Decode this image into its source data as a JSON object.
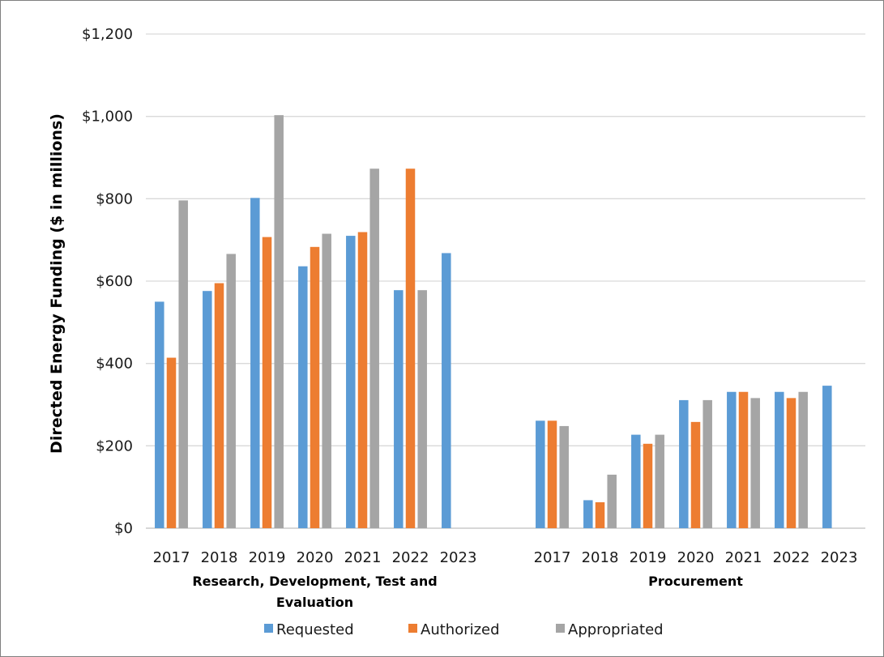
{
  "chart_data": {
    "type": "bar",
    "ylabel": "Directed Energy Funding ($ in millions)",
    "ylim": [
      0,
      1200
    ],
    "y_ticks": [
      "$0",
      "$200",
      "$400",
      "$600",
      "$800",
      "$1,000",
      "$1,200"
    ],
    "y_tick_values": [
      0,
      200,
      400,
      600,
      800,
      1000,
      1200
    ],
    "grid": true,
    "legend_position": "bottom",
    "legend": [
      "Requested",
      "Authorized",
      "Appropriated"
    ],
    "colors": {
      "Requested": "#5b9bd5",
      "Authorized": "#ed7d31",
      "Appropriated": "#a5a5a5"
    },
    "groups": [
      {
        "label_lines": [
          "Research, Development, Test and",
          "Evaluation"
        ],
        "categories": [
          "2017",
          "2018",
          "2019",
          "2020",
          "2021",
          "2022",
          "2023"
        ],
        "series": [
          {
            "name": "Requested",
            "values": [
              550,
              576,
              802,
              636,
              710,
              578,
              668
            ]
          },
          {
            "name": "Authorized",
            "values": [
              414,
              595,
              707,
              683,
              719,
              873,
              null
            ]
          },
          {
            "name": "Appropriated",
            "values": [
              796,
              666,
              1003,
              715,
              873,
              578,
              null
            ]
          }
        ]
      },
      {
        "label_lines": [
          "Procurement"
        ],
        "categories": [
          "2017",
          "2018",
          "2019",
          "2020",
          "2021",
          "2022",
          "2023"
        ],
        "series": [
          {
            "name": "Requested",
            "values": [
              261,
              68,
              227,
              311,
              331,
              331,
              346
            ]
          },
          {
            "name": "Authorized",
            "values": [
              261,
              63,
              205,
              258,
              331,
              316,
              null
            ]
          },
          {
            "name": "Appropriated",
            "values": [
              248,
              130,
              227,
              311,
              316,
              331,
              null
            ]
          }
        ]
      }
    ]
  }
}
